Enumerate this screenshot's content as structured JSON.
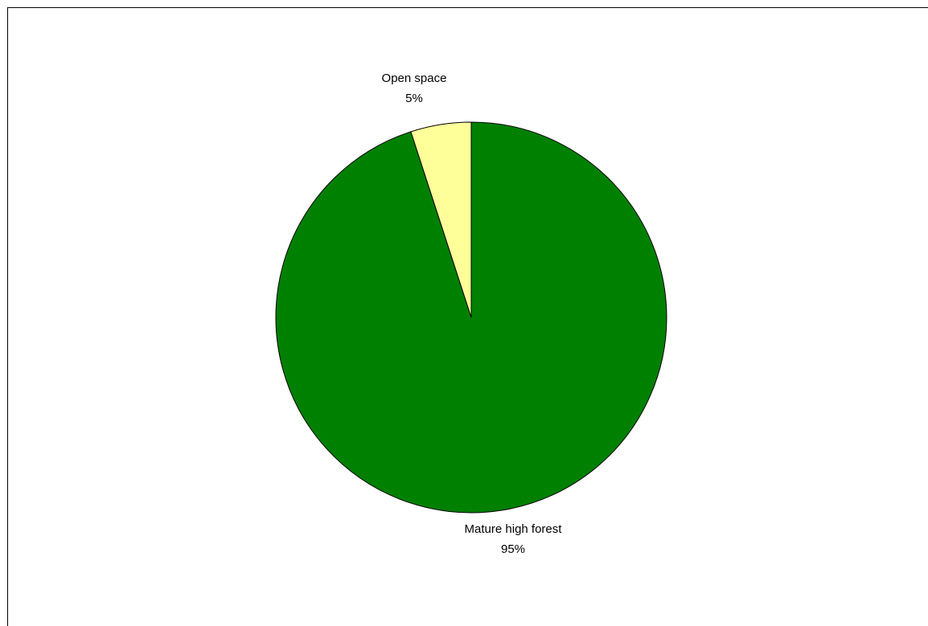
{
  "chart_data": {
    "type": "pie",
    "title": "",
    "slices": [
      {
        "label": "Mature high forest",
        "value": 95,
        "percent_label": "95%",
        "color": "#008000"
      },
      {
        "label": "Open space",
        "value": 5,
        "percent_label": "5%",
        "color": "#FFFF99"
      }
    ],
    "legend": "none",
    "data_labels": "category and percent"
  }
}
